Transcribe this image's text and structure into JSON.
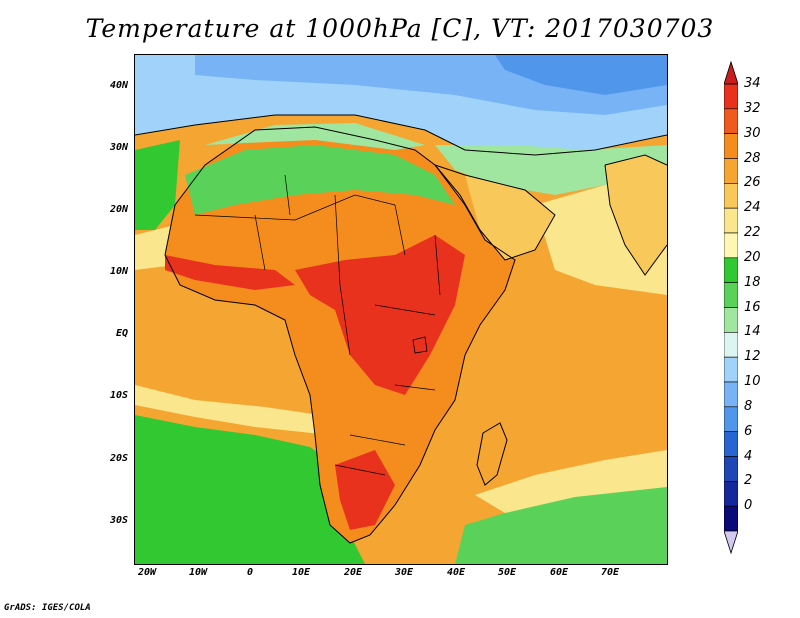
{
  "title": "Temperature at 1000hPa [C], VT: 2017030703",
  "credit": "GrADS: IGES/COLA",
  "lat_ticks": [
    "40N",
    "30N",
    "20N",
    "10N",
    "EQ",
    "10S",
    "20S",
    "30S"
  ],
  "lon_ticks": [
    "20W",
    "10W",
    "0",
    "10E",
    "20E",
    "30E",
    "40E",
    "50E",
    "60E",
    "70E"
  ],
  "colorbar": {
    "labels": [
      "34",
      "32",
      "30",
      "28",
      "26",
      "24",
      "22",
      "20",
      "18",
      "16",
      "14",
      "12",
      "10",
      "8",
      "6",
      "4",
      "2",
      "0"
    ],
    "colors": [
      "#e8321e",
      "#f05a1e",
      "#f58c1e",
      "#f5a532",
      "#f8c85a",
      "#fae68c",
      "#fff5b4",
      "#32c832",
      "#5ad25a",
      "#a0e6a0",
      "#dcf5f0",
      "#a0d2fa",
      "#78b4f5",
      "#5096eb",
      "#2864d2",
      "#1e46b4",
      "#14289b",
      "#0a0a78"
    ],
    "top_arrow_color": "#c81e1e",
    "bottom_arrow_color": "#d2c8f0"
  },
  "map_colors": {
    "ocean_warm": "#f5a532",
    "ocean_mild": "#fae68c",
    "ocean_cool": "#32c832",
    "land_hot": "#e8321e",
    "land_warm": "#f58c1e",
    "north_cool": "#a0e6a0",
    "north_cold": "#a0d2fa",
    "far_north": "#5096eb"
  }
}
